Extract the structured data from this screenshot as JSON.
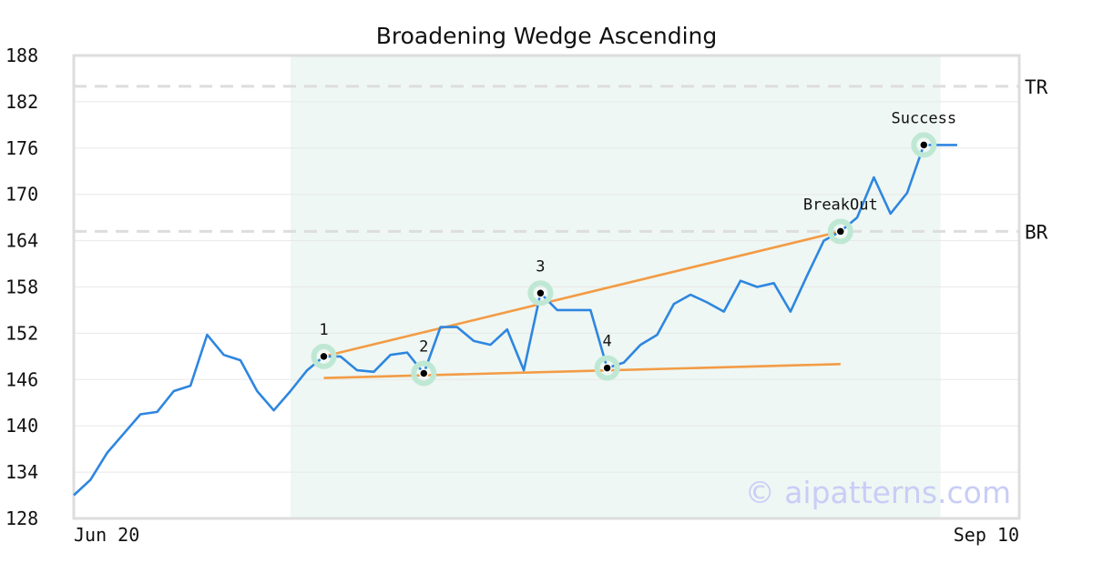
{
  "chart_data": {
    "type": "line",
    "title": "Broadening Wedge Ascending",
    "xlabel": "",
    "ylabel": "",
    "ylim": [
      128,
      188
    ],
    "yticks": [
      128,
      134,
      140,
      146,
      152,
      158,
      164,
      170,
      176,
      182,
      188
    ],
    "x_labels": [
      "Jun 20",
      "Sep 10"
    ],
    "grid": true,
    "colors": {
      "price": "#2e86e0",
      "trendline": "#f39b45",
      "pattern_band": "#eef7f3",
      "marker_halo": "#bfe8d4",
      "reference_line": "#dddddd",
      "grid": "#e8e8e8",
      "watermark": "#c9cdf7"
    },
    "series": [
      {
        "values": [
          131,
          133,
          136.5,
          139,
          141.5,
          141.8,
          144.5,
          145.2,
          151.8,
          149.2,
          148.5,
          144.5,
          142,
          144.5,
          147.2,
          149,
          149,
          147.2,
          147,
          149.2,
          149.5,
          146.8,
          152.8,
          152.8,
          151,
          150.5,
          152.5,
          147.2,
          157.2,
          155,
          155,
          155,
          147.5,
          148.2,
          150.5,
          151.8,
          155.8,
          157,
          156,
          154.8,
          158.8,
          158,
          158.5,
          154.8,
          159.5,
          164,
          165.2,
          167,
          172.2,
          167.5,
          170.2,
          176.4,
          176.4,
          176.4
        ]
      }
    ],
    "pattern_region": {
      "start_index": 13,
      "end_index": 52
    },
    "trendlines": [
      {
        "from": {
          "index": 15,
          "value": 149
        },
        "to": {
          "index": 46,
          "value": 165.2
        }
      },
      {
        "from": {
          "index": 15,
          "value": 146.2
        },
        "to": {
          "index": 46,
          "value": 148
        }
      }
    ],
    "reference_lines": [
      {
        "label": "TR",
        "value": 184
      },
      {
        "label": "BR",
        "value": 165.2
      }
    ],
    "points": [
      {
        "label": "1",
        "index": 15,
        "value": 149
      },
      {
        "label": "2",
        "index": 21,
        "value": 146.8
      },
      {
        "label": "3",
        "index": 28,
        "value": 157.2
      },
      {
        "label": "4",
        "index": 32,
        "value": 147.5
      },
      {
        "label": "BreakOut",
        "index": 46,
        "value": 165.2
      },
      {
        "label": "Success",
        "index": 51,
        "value": 176.4
      }
    ],
    "watermark": "© aipatterns.com"
  }
}
